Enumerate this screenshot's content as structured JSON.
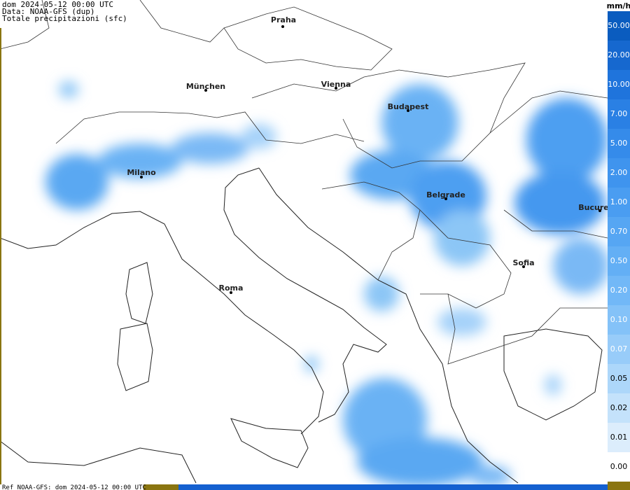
{
  "header": {
    "line1": "dom 2024-05-12 00:00 UTC",
    "line2": "Data: NOAA-GFS (dup)",
    "line3": "Totale precipitazioni (sfc)"
  },
  "cities": [
    "Praha",
    "München",
    "Vienna",
    "Budapest",
    "Milano",
    "Belgrade",
    "Bucure",
    "Sofia",
    "Roma"
  ],
  "legend": {
    "unit": "mm/h",
    "entries": [
      {
        "label": "50.00",
        "color": "#0a5cbf"
      },
      {
        "label": "20.00",
        "color": "#1668cf"
      },
      {
        "label": "10.00",
        "color": "#1f74dc"
      },
      {
        "label": "7.00",
        "color": "#2a80e4"
      },
      {
        "label": "5.00",
        "color": "#358bea"
      },
      {
        "label": "2.00",
        "color": "#3f94ee"
      },
      {
        "label": "1.00",
        "color": "#4a9df1"
      },
      {
        "label": "0.70",
        "color": "#56a6f3"
      },
      {
        "label": "0.50",
        "color": "#63aff5"
      },
      {
        "label": "0.20",
        "color": "#72b8f7"
      },
      {
        "label": "0.10",
        "color": "#84c2f8"
      },
      {
        "label": "0.07",
        "color": "#98ccf9"
      },
      {
        "label": "0.05",
        "color": "#add7fa"
      },
      {
        "label": "0.02",
        "color": "#c4e2fb"
      },
      {
        "label": "0.01",
        "color": "#dcedfc"
      },
      {
        "label": "0.00",
        "color": "#ffffff"
      }
    ]
  },
  "footer": "Ref NOAA-GFS: dom 2024-05-12 00:00 UTC"
}
